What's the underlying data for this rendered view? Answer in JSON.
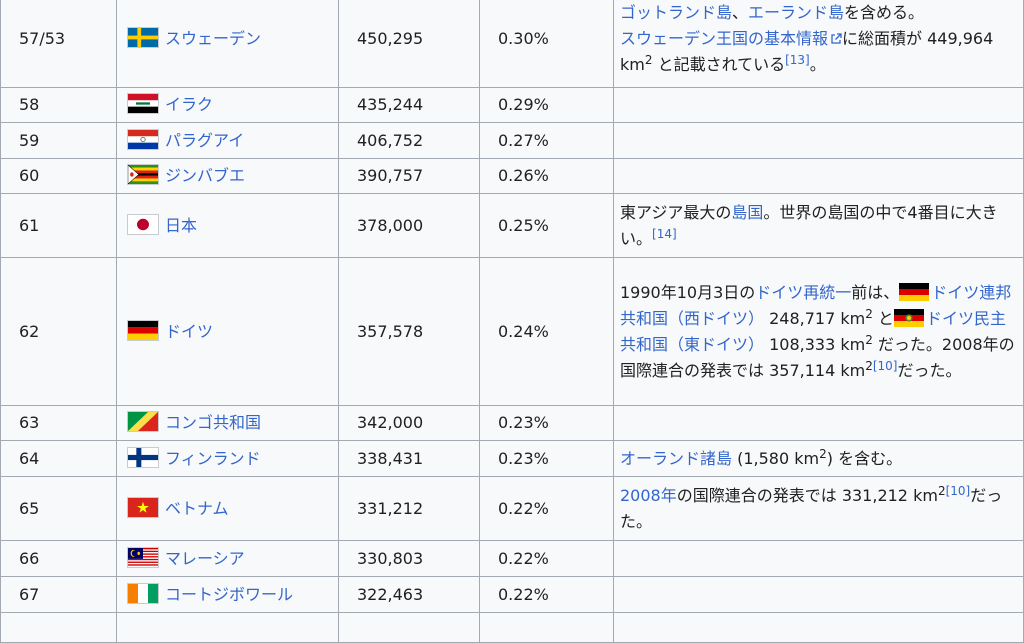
{
  "rows": [
    {
      "rank": "57/53",
      "country": "スウェーデン",
      "flag": "sweden-flag-icon",
      "area": "450,295",
      "pct": "0.30%"
    },
    {
      "rank": "58",
      "country": "イラク",
      "flag": "iraq-flag-icon",
      "area": "435,244",
      "pct": "0.29%"
    },
    {
      "rank": "59",
      "country": "パラグアイ",
      "flag": "paraguay-flag-icon",
      "area": "406,752",
      "pct": "0.27%"
    },
    {
      "rank": "60",
      "country": "ジンバブエ",
      "flag": "zimbabwe-flag-icon",
      "area": "390,757",
      "pct": "0.26%"
    },
    {
      "rank": "61",
      "country": "日本",
      "flag": "japan-flag-icon",
      "area": "378,000",
      "pct": "0.25%"
    },
    {
      "rank": "62",
      "country": "ドイツ",
      "flag": "germany-flag-icon",
      "area": "357,578",
      "pct": "0.24%"
    },
    {
      "rank": "63",
      "country": "コンゴ共和国",
      "flag": "congo-flag-icon",
      "area": "342,000",
      "pct": "0.23%"
    },
    {
      "rank": "64",
      "country": "フィンランド",
      "flag": "finland-flag-icon",
      "area": "338,431",
      "pct": "0.23%"
    },
    {
      "rank": "65",
      "country": "ベトナム",
      "flag": "vietnam-flag-icon",
      "area": "331,212",
      "pct": "0.22%"
    },
    {
      "rank": "66",
      "country": "マレーシア",
      "flag": "malaysia-flag-icon",
      "area": "330,803",
      "pct": "0.22%"
    },
    {
      "rank": "67",
      "country": "コートジボワール",
      "flag": "ivory-coast-flag-icon",
      "area": "322,463",
      "pct": "0.22%"
    }
  ],
  "notes": {
    "sweden": {
      "l1": "ゴットランド島",
      "t1": "、",
      "l2": "エーランド島",
      "t2": "を含める。",
      "l3": "スウェーデン王国の基本情報",
      "t3": "に総面積が 449,964 km",
      "sup": "2",
      "t4": " と記載されている",
      "ref": "[13]",
      "t5": "。"
    },
    "japan": {
      "t1": "東アジア最大の",
      "l1": "島国",
      "t2": "。世界の島国の中で4番目に大きい。",
      "ref": "[14]"
    },
    "germany": {
      "t1": "1990年10月3日の",
      "l1": "ドイツ再統一",
      "t2": "前は、",
      "l2": "ドイツ連邦共和国（西ドイツ）",
      "t3": " 248,717 km",
      "sup1": "2",
      "t4": " と",
      "l3": "ドイツ民主共和国（東ドイツ）",
      "t5": " 108,333 km",
      "sup2": "2",
      "t6": " だった。2008年の国際連合の発表では 357,114 km",
      "sup3": "2",
      "ref": "[10]",
      "t7": "だった。"
    },
    "finland": {
      "l1": "オーランド諸島",
      "t1": " (1,580 km",
      "sup": "2",
      "t2": ") を含む。"
    },
    "vietnam": {
      "l1": "2008年",
      "t1": "の国際連合の発表では 331,212 km",
      "sup": "2",
      "ref": "[10]",
      "t2": "だった。"
    }
  }
}
